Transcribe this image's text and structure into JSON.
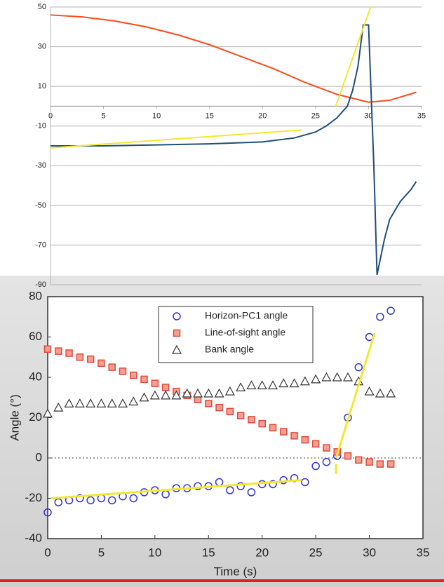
{
  "chart_data": [
    {
      "type": "line",
      "xlim": [
        0,
        35
      ],
      "ylim": [
        -90,
        50
      ],
      "xticks": [
        0,
        5,
        10,
        15,
        20,
        25,
        30,
        35
      ],
      "yticks": [
        50,
        30,
        10,
        -10,
        -30,
        -50,
        -70,
        -90
      ],
      "grid": true,
      "series": [
        {
          "color": "#ff4a1c",
          "x": [
            0,
            3,
            6,
            9,
            12,
            15,
            18,
            21,
            24,
            27,
            30,
            32,
            34.5
          ],
          "values": [
            46,
            45,
            43,
            40,
            36,
            31,
            25,
            19,
            12,
            6,
            2,
            3,
            7
          ]
        },
        {
          "color": "#1f4e79",
          "x": [
            0,
            5,
            10,
            15,
            20,
            23,
            25,
            26,
            27,
            28,
            28.5,
            29,
            29.5,
            30,
            30.5,
            30.8,
            31.5,
            32,
            33,
            34,
            34.5
          ],
          "values": [
            -20,
            -20,
            -19.5,
            -19,
            -18,
            -16,
            -13,
            -10,
            -6,
            0,
            8,
            20,
            41,
            41,
            -30,
            -85,
            -67,
            -57,
            -48,
            -42,
            -38
          ]
        },
        {
          "color": "#f2e830",
          "x": [
            0,
            23.7,
            25,
            26.9,
            30.2
          ],
          "values": [
            -21,
            -12,
            null,
            0,
            50
          ]
        }
      ]
    },
    {
      "type": "scatter",
      "xlim": [
        0,
        35
      ],
      "ylim": [
        -40,
        80
      ],
      "xticks": [
        0,
        5,
        10,
        15,
        20,
        25,
        30,
        35
      ],
      "yticks": [
        80,
        60,
        40,
        20,
        0,
        -20,
        -40
      ],
      "xlabel": "Time (s)",
      "ylabel": "Angle (°)",
      "hline": 0,
      "series": [
        {
          "name": "Horizon-PC1 angle",
          "marker": "circle",
          "color": "#3434d8",
          "x": [
            0,
            1,
            2,
            3,
            4,
            5,
            6,
            7,
            8,
            9,
            10,
            11,
            12,
            13,
            14,
            15,
            16,
            17,
            18,
            19,
            20,
            21,
            22,
            23,
            24,
            25,
            26,
            27,
            28,
            29,
            30,
            31,
            32
          ],
          "values": [
            -27,
            -22,
            -21,
            -20,
            -21,
            -20,
            -21,
            -19,
            -20,
            -17,
            -16,
            -18,
            -15,
            -15,
            -14,
            -14,
            -12,
            -16,
            -14,
            -17,
            -13,
            -13,
            -11,
            -10,
            -12,
            -4,
            -2,
            1,
            20,
            45,
            60,
            70,
            73
          ]
        },
        {
          "name": "Line-of-sight angle",
          "marker": "square",
          "color": "#e04a3a",
          "x": [
            0,
            1,
            2,
            3,
            4,
            5,
            6,
            7,
            8,
            9,
            10,
            11,
            12,
            13,
            14,
            15,
            16,
            17,
            18,
            19,
            20,
            21,
            22,
            23,
            24,
            25,
            26,
            27,
            28,
            29,
            30,
            31,
            32
          ],
          "values": [
            54,
            53,
            52,
            50,
            49,
            47,
            45,
            43,
            41,
            39,
            37,
            35,
            33,
            31,
            29,
            27,
            25,
            23,
            21,
            19,
            17,
            15,
            13,
            11,
            9,
            7,
            5,
            3,
            1,
            -1,
            -2,
            -3,
            -3
          ]
        },
        {
          "name": "Bank angle",
          "marker": "triangle",
          "color": "#333333",
          "x": [
            0,
            1,
            2,
            3,
            4,
            5,
            6,
            7,
            8,
            9,
            10,
            11,
            12,
            13,
            14,
            15,
            16,
            17,
            18,
            19,
            20,
            21,
            22,
            23,
            24,
            25,
            26,
            27,
            28,
            29,
            30,
            31,
            32
          ],
          "values": [
            22,
            25,
            27,
            27,
            27,
            27,
            27,
            27,
            28,
            30,
            31,
            31,
            31,
            32,
            32,
            32,
            32,
            33,
            35,
            36,
            36,
            36,
            37,
            37,
            38,
            39,
            40,
            40,
            40,
            38,
            33,
            32,
            32
          ]
        },
        {
          "color": "#f2e830",
          "x": [
            0.3,
            23.7,
            25,
            26.9,
            26.9,
            26.9,
            26.9,
            30.5
          ],
          "values": [
            -20,
            -11,
            null,
            -8,
            -3,
            null,
            0,
            62
          ]
        }
      ]
    }
  ]
}
